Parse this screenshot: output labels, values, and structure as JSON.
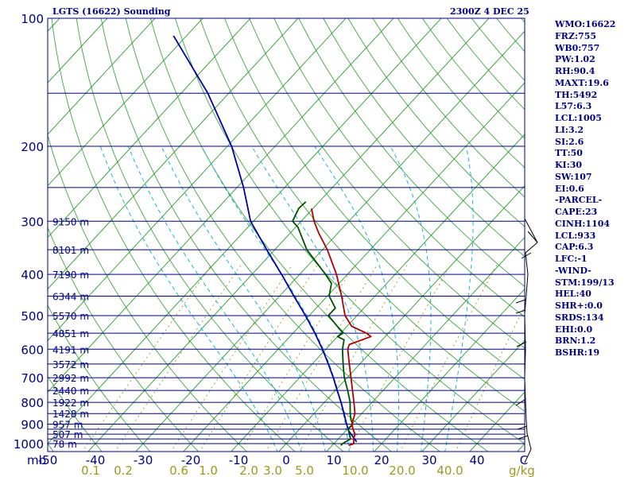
{
  "header": {
    "title": "LGTS (16622) Sounding",
    "time": "2300Z  4 DEC 25"
  },
  "indices": [
    "WMO:16622",
    "FRZ:755",
    "WB0:757",
    "PW:1.02",
    "RH:90.4",
    "MAXT:19.6",
    "TH:5492",
    "L57:6.3",
    "LCL:1005",
    "LI:3.2",
    "SI:2.6",
    "TT:50",
    "KI:30",
    "SW:107",
    "EI:0.6",
    "-PARCEL-",
    "CAPE:23",
    "CINH:1104",
    "LCL:933",
    "CAP:6.3",
    "LFC:-1",
    "-WIND-",
    "STM:199/13",
    "HEL:40",
    "SHR+:0.0",
    "SRDS:134",
    "EHI:0.0",
    "BRN:1.2",
    "BSHR:19"
  ],
  "colors": {
    "axis": "#000080",
    "temperature": "#b00000",
    "dewpoint": "#005000",
    "parcel": "#0000a0",
    "isotherm": "#2a9a2a",
    "moist_adiabat": "#00b0d0",
    "mixing_ratio": "#9a9a20"
  },
  "chart_data": {
    "type": "skew-T log-P sounding",
    "station": "LGTS (16622)",
    "x_axis": {
      "label": "C",
      "min": -50,
      "max": 50,
      "ticks": [
        -50,
        -40,
        -30,
        -20,
        -10,
        0,
        10,
        20,
        30,
        40
      ]
    },
    "y_axis": {
      "label": "mb",
      "min": 100,
      "max": 1000,
      "scale": "log",
      "ticks": [
        100,
        200,
        300,
        400,
        500,
        600,
        700,
        800,
        900,
        1000
      ]
    },
    "isobar_levels": [
      1000,
      975,
      950,
      925,
      900,
      850,
      800,
      750,
      700,
      650,
      600,
      550,
      500,
      450,
      400,
      350,
      300,
      250,
      200,
      150
    ],
    "height_labels": [
      {
        "p": 1000,
        "label": "78 m"
      },
      {
        "p": 950,
        "label": "507 m"
      },
      {
        "p": 900,
        "label": "957 m"
      },
      {
        "p": 850,
        "label": "1428 m"
      },
      {
        "p": 800,
        "label": "1922 m"
      },
      {
        "p": 750,
        "label": "2440 m"
      },
      {
        "p": 700,
        "label": "2992 m"
      },
      {
        "p": 650,
        "label": "3572 m"
      },
      {
        "p": 600,
        "label": "4191 m"
      },
      {
        "p": 550,
        "label": "4851 m"
      },
      {
        "p": 500,
        "label": "5570 m"
      },
      {
        "p": 450,
        "label": "6344 m"
      },
      {
        "p": 400,
        "label": "7190 m"
      },
      {
        "p": 350,
        "label": "8101 m"
      },
      {
        "p": 300,
        "label": "9150 m"
      }
    ],
    "mixing_ratio_labels": [
      "0.1",
      "0.2",
      "0.6",
      "1.0",
      "2.0",
      "3.0",
      "5.0",
      "10.0",
      "20.0",
      "40.0"
    ],
    "mixing_ratio_units": "g/kg",
    "temperature": [
      [
        1010,
        13.5
      ],
      [
        1000,
        14.2
      ],
      [
        975,
        13.2
      ],
      [
        950,
        12.6
      ],
      [
        925,
        11.2
      ],
      [
        900,
        10.0
      ],
      [
        850,
        8.6
      ],
      [
        800,
        6.2
      ],
      [
        750,
        3.6
      ],
      [
        700,
        0.8
      ],
      [
        650,
        -2.2
      ],
      [
        600,
        -5.4
      ],
      [
        585,
        -6.0
      ],
      [
        560,
        -3.0
      ],
      [
        550,
        -4.6
      ],
      [
        530,
        -9.0
      ],
      [
        500,
        -12.5
      ],
      [
        450,
        -17.0
      ],
      [
        400,
        -22.3
      ],
      [
        350,
        -29.0
      ],
      [
        320,
        -34.0
      ],
      [
        300,
        -37.3
      ],
      [
        280,
        -40.3
      ]
    ],
    "dewpoint": [
      [
        1010,
        11.8
      ],
      [
        1000,
        11.8
      ],
      [
        975,
        12.6
      ],
      [
        950,
        11.4
      ],
      [
        925,
        10.2
      ],
      [
        900,
        10.2
      ],
      [
        880,
        9.0
      ],
      [
        850,
        7.6
      ],
      [
        800,
        5.4
      ],
      [
        750,
        2.6
      ],
      [
        700,
        -0.6
      ],
      [
        650,
        -3.5
      ],
      [
        600,
        -6.5
      ],
      [
        570,
        -8.0
      ],
      [
        560,
        -10.0
      ],
      [
        550,
        -9.5
      ],
      [
        500,
        -16.0
      ],
      [
        480,
        -16.0
      ],
      [
        450,
        -19.6
      ],
      [
        420,
        -21.6
      ],
      [
        400,
        -24.6
      ],
      [
        350,
        -33.3
      ],
      [
        310,
        -39.5
      ],
      [
        300,
        -41.8
      ],
      [
        280,
        -43.0
      ],
      [
        270,
        -42.8
      ]
    ],
    "parcel": [
      [
        990,
        14.4
      ],
      [
        933,
        10.6
      ],
      [
        900,
        8.9
      ],
      [
        850,
        6.3
      ],
      [
        800,
        3.5
      ],
      [
        750,
        0.4
      ],
      [
        700,
        -2.9
      ],
      [
        650,
        -6.6
      ],
      [
        600,
        -10.7
      ],
      [
        550,
        -15.4
      ],
      [
        500,
        -20.8
      ],
      [
        450,
        -27.0
      ],
      [
        400,
        -33.8
      ],
      [
        350,
        -41.7
      ],
      [
        300,
        -50.6
      ],
      [
        250,
        -58.6
      ],
      [
        200,
        -69.1
      ],
      [
        150,
        -84.4
      ],
      [
        110,
        -102.7
      ]
    ]
  }
}
